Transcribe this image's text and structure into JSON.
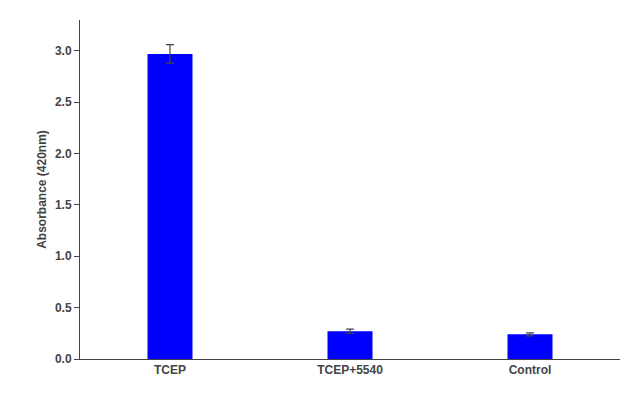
{
  "chart_data": {
    "type": "bar",
    "categories": [
      "TCEP",
      "TCEP+5540",
      "Control"
    ],
    "values": [
      2.97,
      0.27,
      0.24
    ],
    "errors": [
      0.09,
      0.02,
      0.015
    ],
    "color": "#0000FF",
    "ylabel": "Absorbance (420nm)",
    "ylim": [
      0,
      3.3
    ],
    "yticks": [
      {
        "value": 0,
        "label": "0.0"
      },
      0.5,
      {
        "value": 1,
        "label": "1.0"
      },
      1.5,
      {
        "value": 2,
        "label": "2.0"
      },
      2.5,
      {
        "value": 3,
        "label": "3.0"
      }
    ],
    "grid": false
  }
}
